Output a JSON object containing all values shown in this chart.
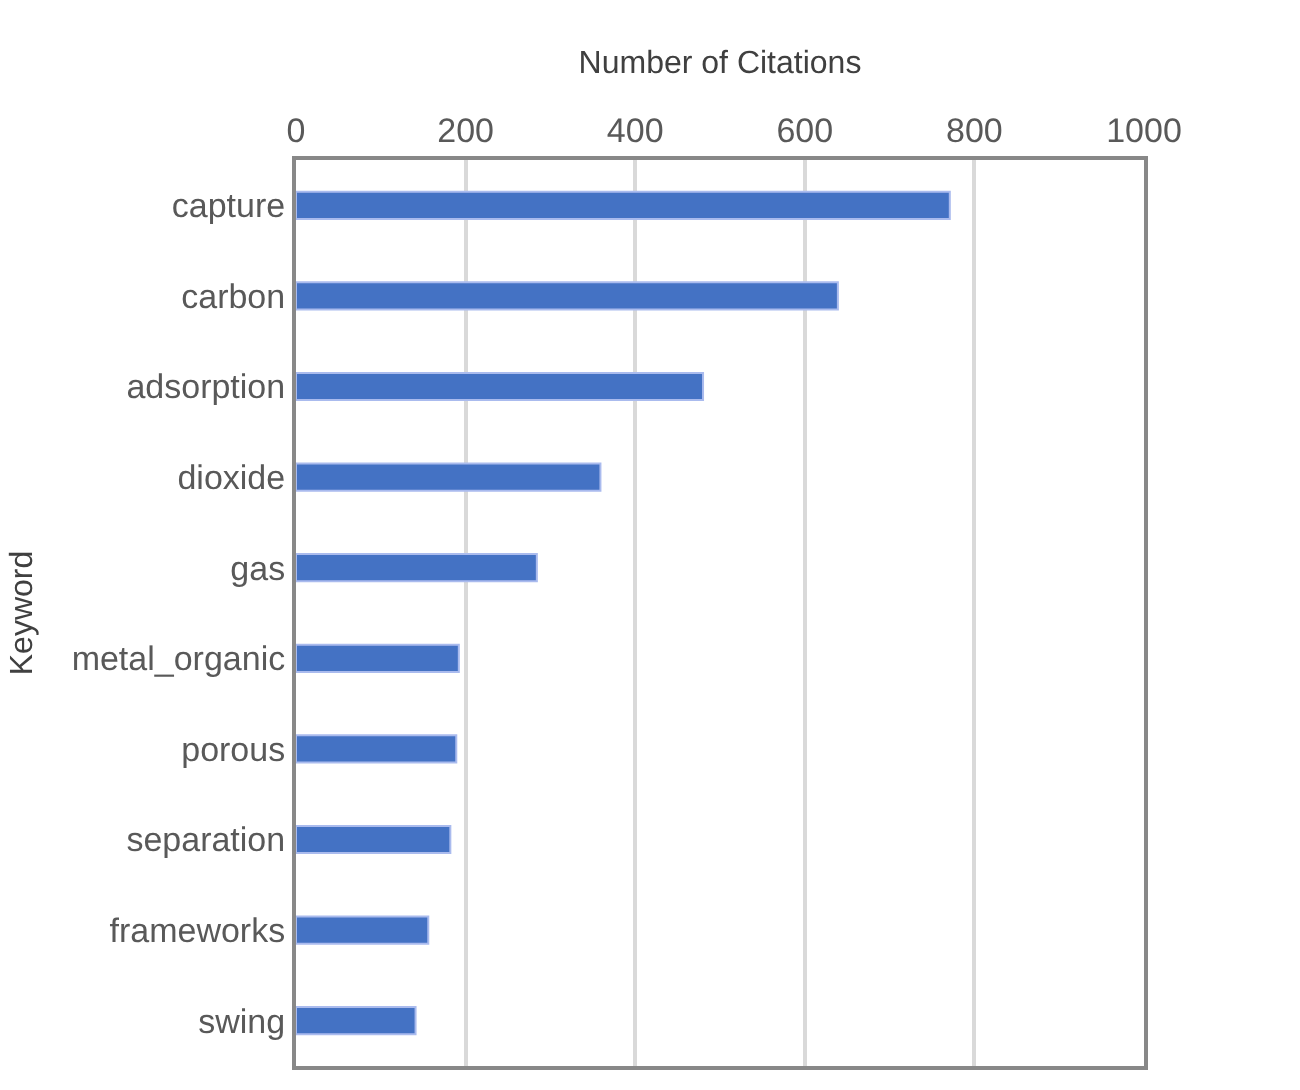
{
  "chart_data": {
    "type": "bar",
    "orientation": "horizontal",
    "xlabel": "Number of Citations",
    "ylabel": "Keyword",
    "categories": [
      "capture",
      "carbon",
      "adsorption",
      "dioxide",
      "gas",
      "metal_organic",
      "porous",
      "separation",
      "frameworks",
      "swing"
    ],
    "values": [
      771,
      639,
      480,
      359,
      284,
      192,
      189,
      182,
      156,
      141
    ],
    "color": "#4472c4",
    "xlim": [
      0,
      1000
    ],
    "xticks": [
      0,
      200,
      400,
      600,
      800,
      1000
    ],
    "grid": "x"
  }
}
